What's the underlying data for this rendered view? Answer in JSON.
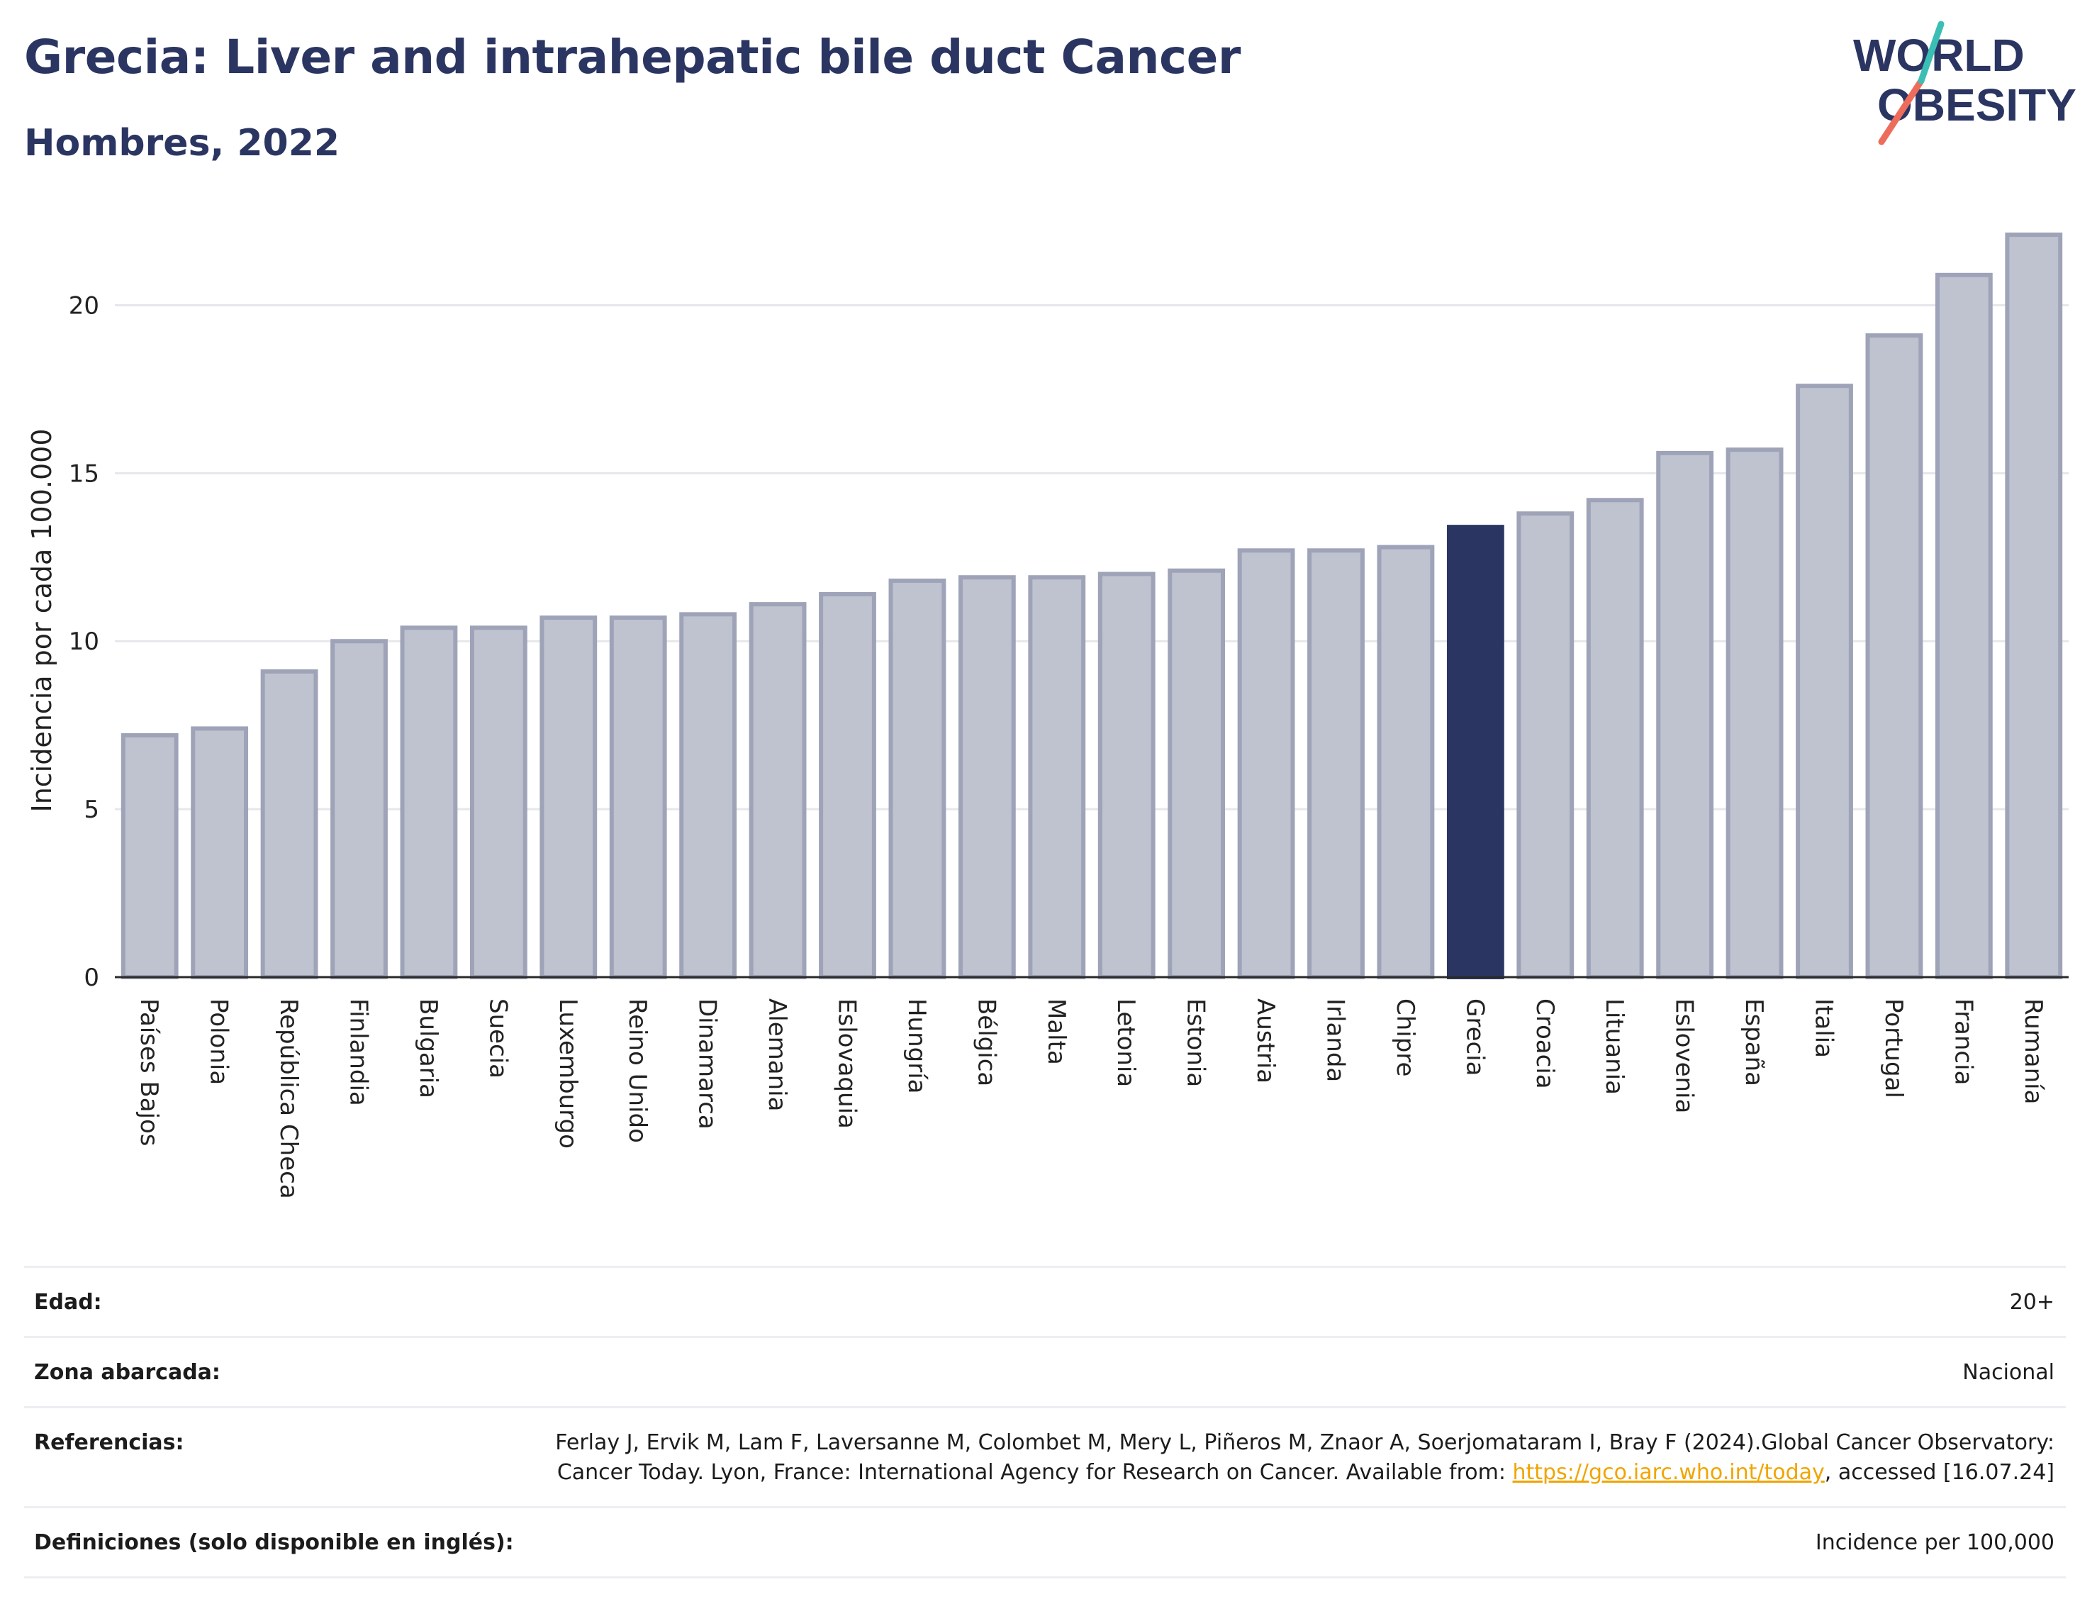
{
  "header": {
    "title": "Grecia: Liver and intrahepatic bile duct Cancer",
    "subtitle": "Hombres, 2022"
  },
  "logo": {
    "line1": "WORLD",
    "line2": "OBESITY"
  },
  "colors": {
    "bar": "#bfc2cf",
    "bar_stroke": "#9ea3b8",
    "highlight": "#2b3562",
    "brand_navy": "#2b3562",
    "logo_teal": "#3bbfb4",
    "logo_coral": "#ee6c5b"
  },
  "chart_data": {
    "type": "bar",
    "title": "Grecia: Liver and intrahepatic bile duct Cancer",
    "subtitle": "Hombres, 2022",
    "xlabel": "",
    "ylabel": "Incidencia por cada 100.000",
    "ylim": [
      0,
      22.5
    ],
    "yticks": [
      0,
      5,
      10,
      15,
      20
    ],
    "grid": true,
    "highlight": "Grecia",
    "categories": [
      "Países Bajos",
      "Polonia",
      "República Checa",
      "Finlandia",
      "Bulgaria",
      "Suecia",
      "Luxemburgo",
      "Reino Unido",
      "Dinamarca",
      "Alemania",
      "Eslovaquia",
      "Hungría",
      "Bélgica",
      "Malta",
      "Letonia",
      "Estonia",
      "Austria",
      "Irlanda",
      "Chipre",
      "Grecia",
      "Croacia",
      "Lituania",
      "Eslovenia",
      "España",
      "Italia",
      "Portugal",
      "Francia",
      "Rumanía"
    ],
    "values": [
      7.2,
      7.4,
      9.1,
      10.0,
      10.4,
      10.4,
      10.7,
      10.7,
      10.8,
      11.1,
      11.4,
      11.8,
      11.9,
      11.9,
      12.0,
      12.1,
      12.7,
      12.7,
      12.8,
      13.4,
      13.8,
      14.2,
      15.6,
      15.7,
      17.6,
      19.1,
      20.9,
      22.1
    ]
  },
  "info": [
    {
      "label": "Edad:",
      "value": "20+"
    },
    {
      "label": "Zona abarcada:",
      "value": "Nacional"
    },
    {
      "label": "Referencias:",
      "value_pre": "Ferlay J, Ervik M, Lam F, Laversanne M, Colombet M, Mery L, Piñeros M, Znaor A, Soerjomataram I, Bray F (2024).Global Cancer Observatory: Cancer Today. Lyon, France: International Agency for Research on Cancer. Available from: ",
      "link": "https://gco.iarc.who.int/today",
      "value_post": ", accessed [16.07.24]"
    },
    {
      "label": "Definiciones (solo disponible en inglés):",
      "value": "Incidence per 100,000"
    }
  ]
}
